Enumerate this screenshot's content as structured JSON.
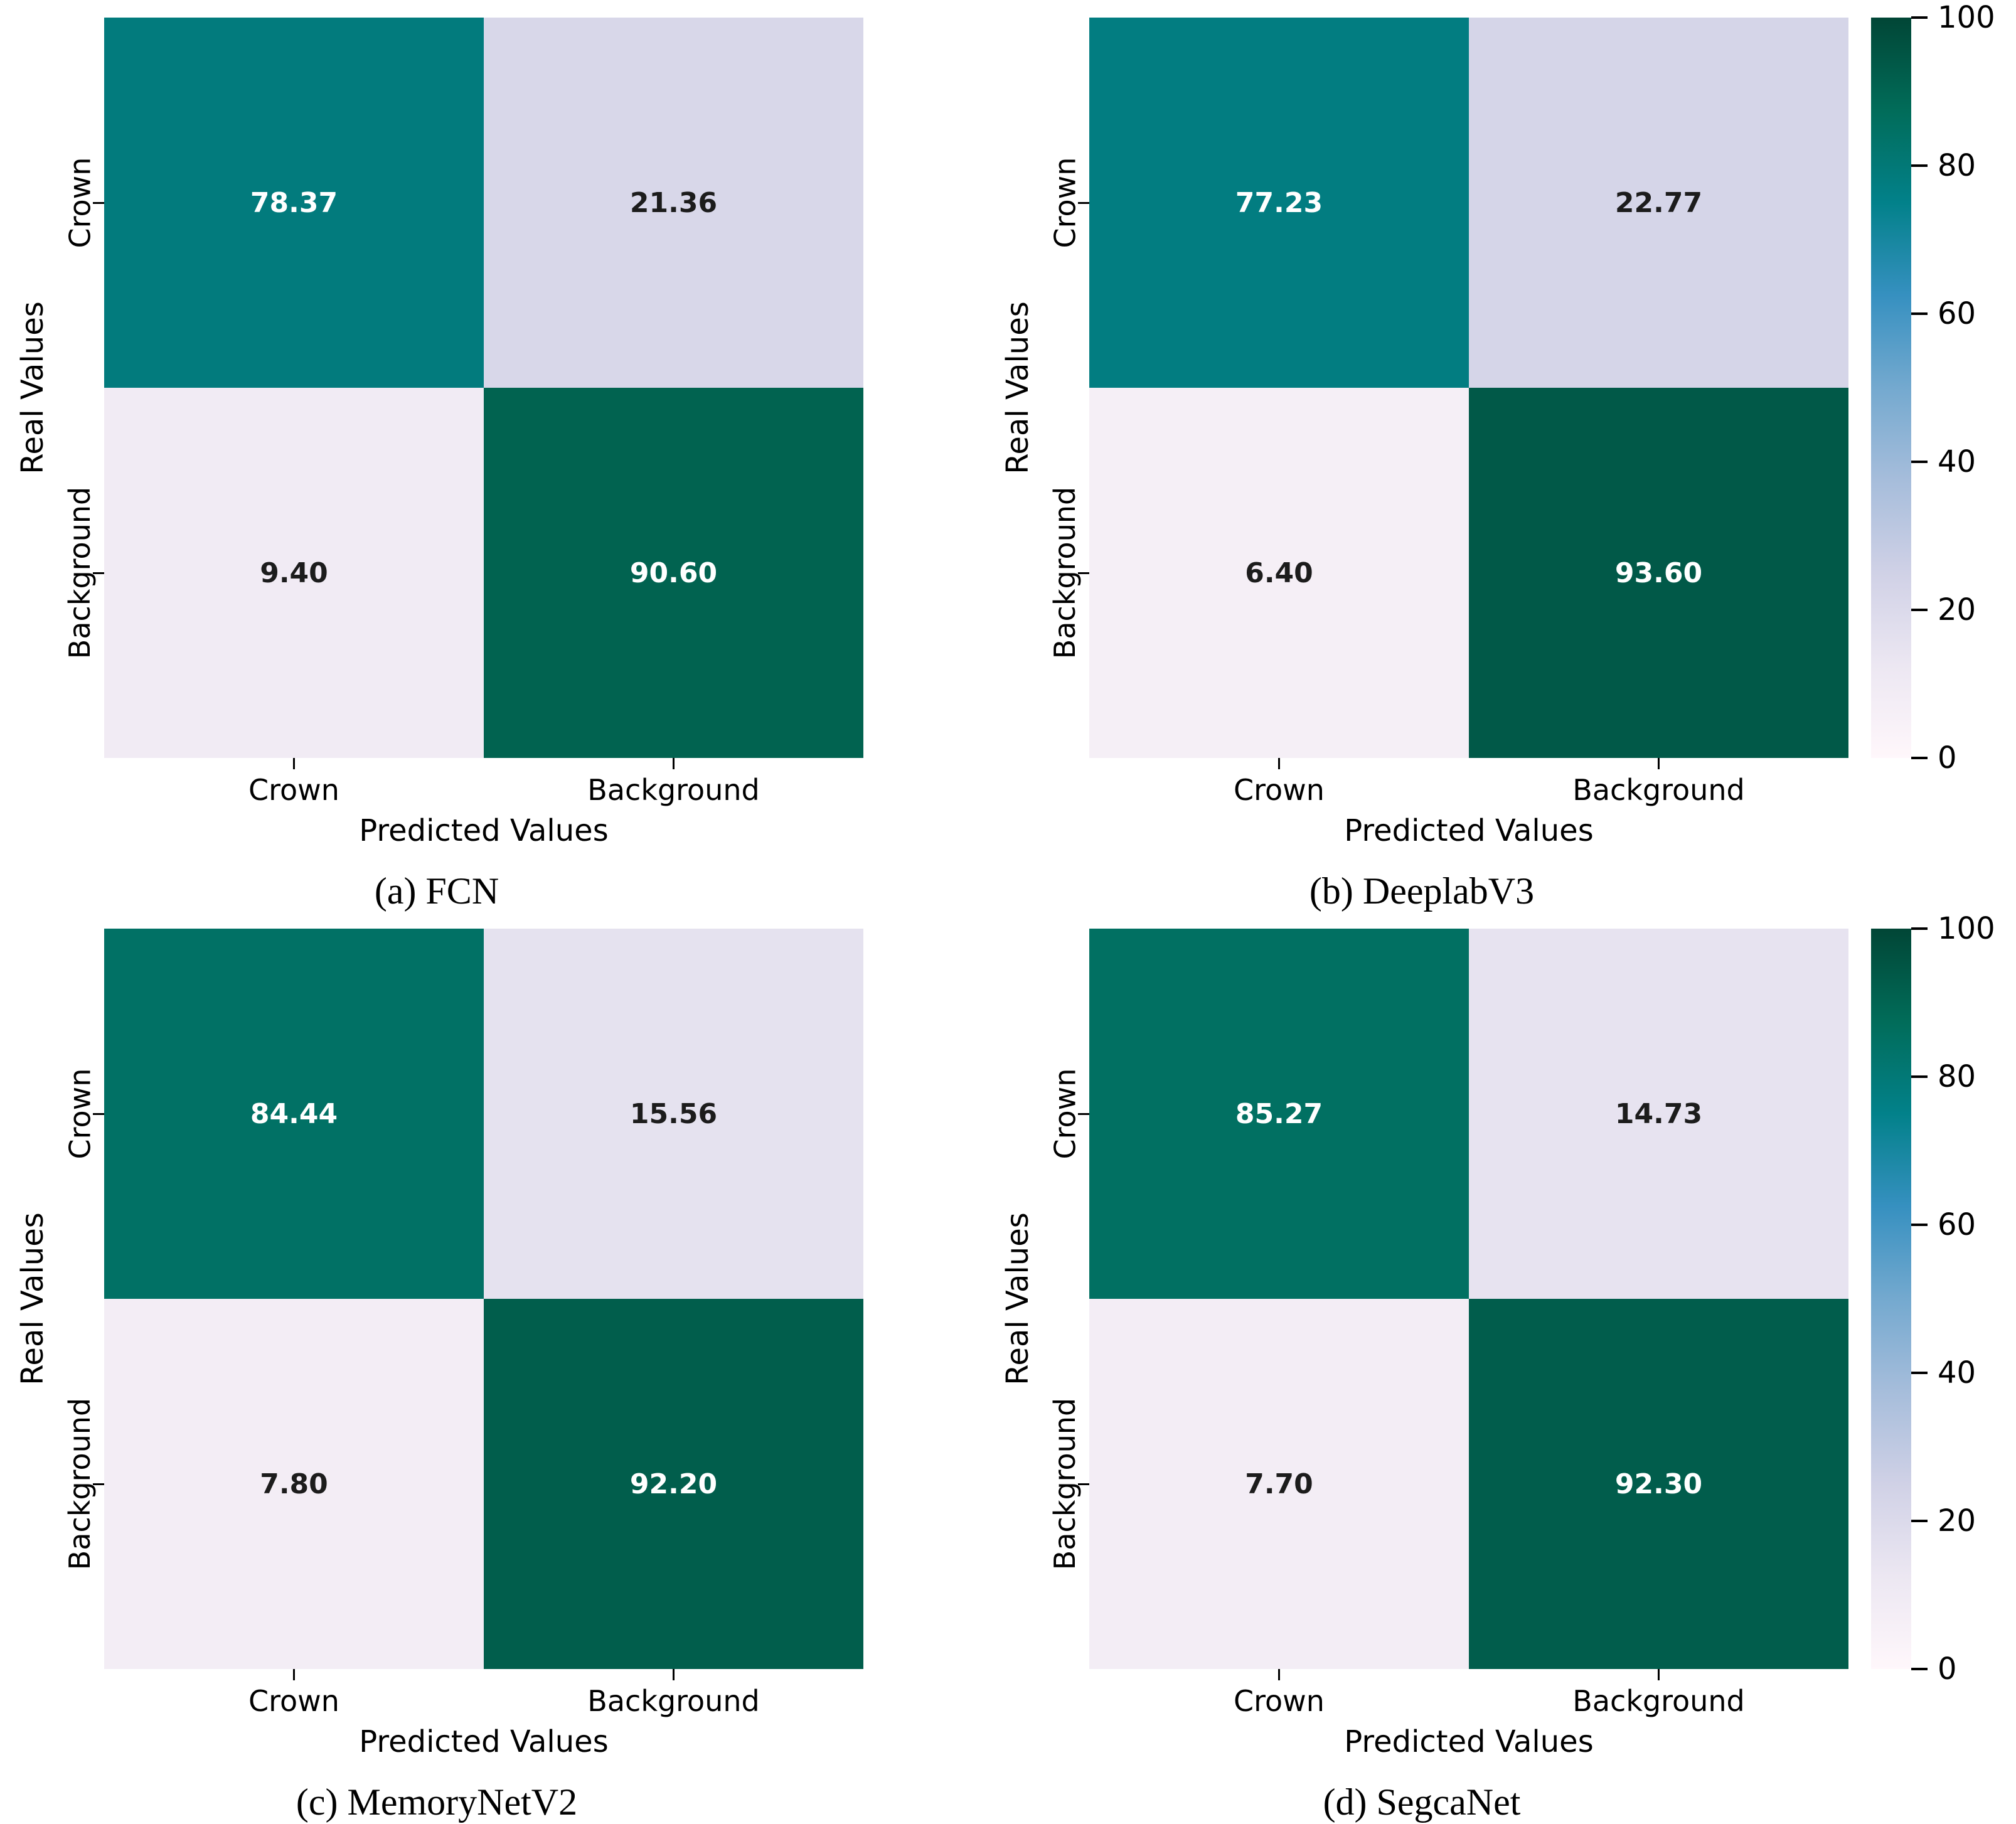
{
  "figure": {
    "background": "#ffffff",
    "grid": "2 rows x 2 columns of confusion matrices, one shared colorbar per row"
  },
  "colormap": {
    "name": "PuBuGn",
    "stops": [
      "#fff7fb",
      "#ece7f2",
      "#d0d1e6",
      "#a6bddb",
      "#74a9cf",
      "#3690c0",
      "#02818a",
      "#016c59",
      "#014636"
    ]
  },
  "colorbar": {
    "min": 0,
    "max": 100,
    "ticks": [
      {
        "value": 0,
        "label": "0"
      },
      {
        "value": 20,
        "label": "20"
      },
      {
        "value": 40,
        "label": "40"
      },
      {
        "value": 60,
        "label": "60"
      },
      {
        "value": 80,
        "label": "80"
      },
      {
        "value": 100,
        "label": "100"
      }
    ]
  },
  "text_colors": {
    "annotation_light": "#ffffff",
    "annotation_dark": "#1c1c1c",
    "axis": "#000000"
  },
  "chart_data": [
    {
      "type": "heatmap",
      "title": "(a) FCN",
      "xlabel": "Predicted Values",
      "ylabel": "Real Values",
      "x_categories": [
        "Crown",
        "Background"
      ],
      "y_categories": [
        "Crown",
        "Background"
      ],
      "values": [
        [
          78.37,
          21.36
        ],
        [
          9.4,
          90.6
        ]
      ],
      "labels": [
        [
          "78.37",
          "21.36"
        ],
        [
          "9.40",
          "90.60"
        ]
      ],
      "vmin": 0,
      "vmax": 100,
      "colormap": "PuBuGn"
    },
    {
      "type": "heatmap",
      "title": "(b) DeeplabV3",
      "xlabel": "Predicted Values",
      "ylabel": "Real Values",
      "x_categories": [
        "Crown",
        "Background"
      ],
      "y_categories": [
        "Crown",
        "Background"
      ],
      "values": [
        [
          77.23,
          22.77
        ],
        [
          6.4,
          93.6
        ]
      ],
      "labels": [
        [
          "77.23",
          "22.77"
        ],
        [
          "6.40",
          "93.60"
        ]
      ],
      "vmin": 0,
      "vmax": 100,
      "colormap": "PuBuGn"
    },
    {
      "type": "heatmap",
      "title": "(c) MemoryNetV2",
      "xlabel": "Predicted Values",
      "ylabel": "Real Values",
      "x_categories": [
        "Crown",
        "Background"
      ],
      "y_categories": [
        "Crown",
        "Background"
      ],
      "values": [
        [
          84.44,
          15.56
        ],
        [
          7.8,
          92.2
        ]
      ],
      "labels": [
        [
          "84.44",
          "15.56"
        ],
        [
          "7.80",
          "92.20"
        ]
      ],
      "vmin": 0,
      "vmax": 100,
      "colormap": "PuBuGn"
    },
    {
      "type": "heatmap",
      "title": "(d) SegcaNet",
      "xlabel": "Predicted Values",
      "ylabel": "Real Values",
      "x_categories": [
        "Crown",
        "Background"
      ],
      "y_categories": [
        "Crown",
        "Background"
      ],
      "values": [
        [
          85.27,
          14.73
        ],
        [
          7.7,
          92.3
        ]
      ],
      "labels": [
        [
          "85.27",
          "14.73"
        ],
        [
          "7.70",
          "92.30"
        ]
      ],
      "vmin": 0,
      "vmax": 100,
      "colormap": "PuBuGn"
    }
  ]
}
